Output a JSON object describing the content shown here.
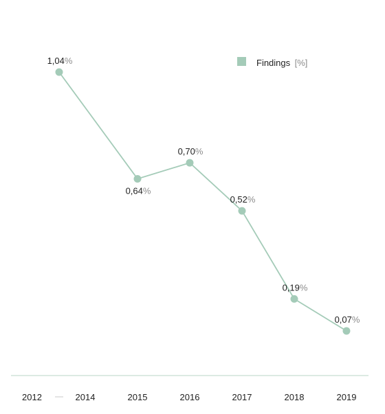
{
  "colors": {
    "series": "#a4cbb8",
    "axis": "#b8d5c7",
    "dash": "#c8c8c8"
  },
  "legend": {
    "label": "Findings",
    "unit": "[%]"
  },
  "chart_data": {
    "type": "line",
    "categories": [
      "2014",
      "2015",
      "2016",
      "2017",
      "2018",
      "2019"
    ],
    "series": [
      {
        "name": "Findings",
        "values": [
          1.04,
          0.64,
          0.7,
          0.52,
          0.19,
          0.07
        ],
        "labels": [
          "1,04",
          "0,64",
          "0,70",
          "0,52",
          "0,19",
          "0,07"
        ]
      }
    ],
    "label_suffix": "%",
    "first_tick_prefix": "2012",
    "first_tick_separator": "—",
    "ylim": [
      0,
      1.2
    ],
    "grid": false,
    "legend_position": "top-right"
  }
}
